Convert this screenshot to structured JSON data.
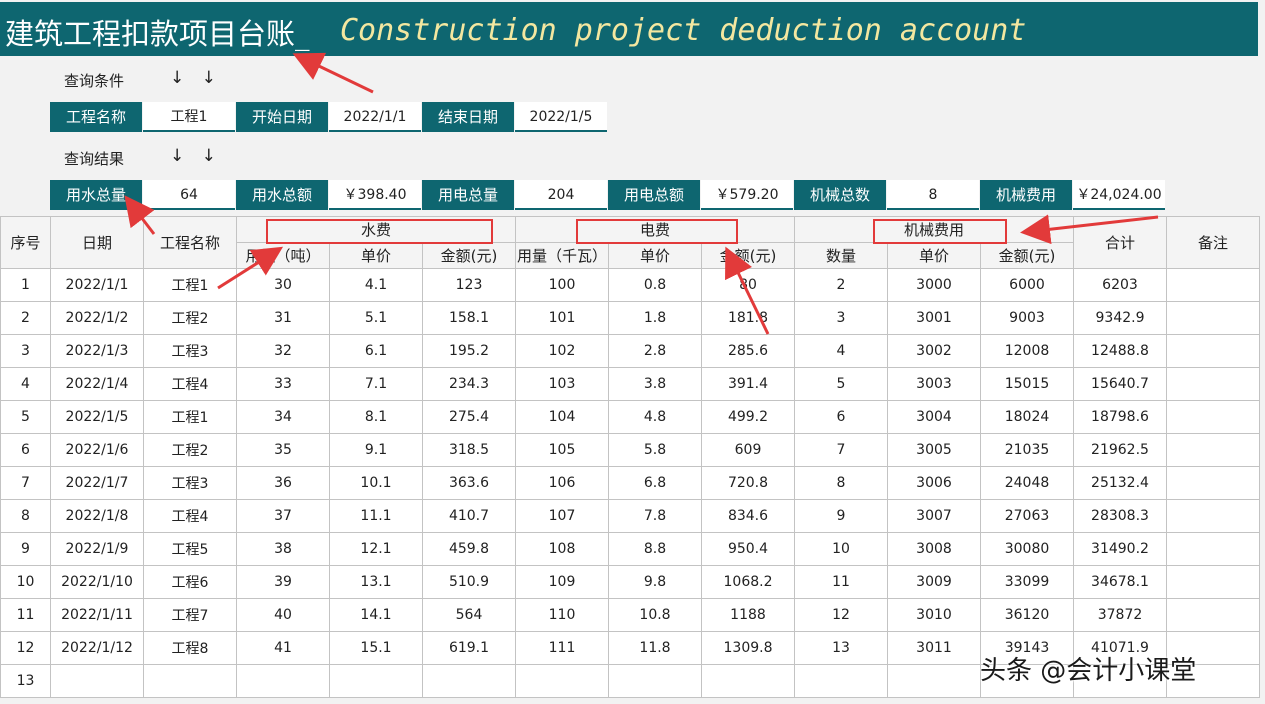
{
  "title": {
    "cn": "建筑工程扣款项目台账_",
    "en": "Construction project deduction account"
  },
  "query": {
    "section_label": "查询条件",
    "arrows": "↓ ↓",
    "fields": [
      {
        "label": "工程名称",
        "value": "工程1"
      },
      {
        "label": "开始日期",
        "value": "2022/1/1"
      },
      {
        "label": "结束日期",
        "value": "2022/1/5"
      }
    ]
  },
  "results": {
    "section_label": "查询结果",
    "arrows": "↓ ↓",
    "fields": [
      {
        "label": "用水总量",
        "value": "64"
      },
      {
        "label": "用水总额",
        "value": "￥398.40"
      },
      {
        "label": "用电总量",
        "value": "204"
      },
      {
        "label": "用电总额",
        "value": "￥579.20"
      },
      {
        "label": "机械总数",
        "value": "8"
      },
      {
        "label": "机械费用",
        "value": "￥24,024.00"
      }
    ]
  },
  "table": {
    "group_headers": {
      "seq": "序号",
      "date": "日期",
      "project": "工程名称",
      "water": "水费",
      "electric": "电费",
      "machine": "机械费用",
      "total": "合计",
      "remark": "备注"
    },
    "sub_headers": [
      "用量（吨）",
      "单价",
      "金额(元)",
      "用量（千瓦）",
      "单价",
      "金额(元)",
      "数量",
      "单价",
      "金额(元)"
    ],
    "rows": [
      [
        "1",
        "2022/1/1",
        "工程1",
        "30",
        "4.1",
        "123",
        "100",
        "0.8",
        "80",
        "2",
        "3000",
        "6000",
        "6203",
        ""
      ],
      [
        "2",
        "2022/1/2",
        "工程2",
        "31",
        "5.1",
        "158.1",
        "101",
        "1.8",
        "181.8",
        "3",
        "3001",
        "9003",
        "9342.9",
        ""
      ],
      [
        "3",
        "2022/1/3",
        "工程3",
        "32",
        "6.1",
        "195.2",
        "102",
        "2.8",
        "285.6",
        "4",
        "3002",
        "12008",
        "12488.8",
        ""
      ],
      [
        "4",
        "2022/1/4",
        "工程4",
        "33",
        "7.1",
        "234.3",
        "103",
        "3.8",
        "391.4",
        "5",
        "3003",
        "15015",
        "15640.7",
        ""
      ],
      [
        "5",
        "2022/1/5",
        "工程1",
        "34",
        "8.1",
        "275.4",
        "104",
        "4.8",
        "499.2",
        "6",
        "3004",
        "18024",
        "18798.6",
        ""
      ],
      [
        "6",
        "2022/1/6",
        "工程2",
        "35",
        "9.1",
        "318.5",
        "105",
        "5.8",
        "609",
        "7",
        "3005",
        "21035",
        "21962.5",
        ""
      ],
      [
        "7",
        "2022/1/7",
        "工程3",
        "36",
        "10.1",
        "363.6",
        "106",
        "6.8",
        "720.8",
        "8",
        "3006",
        "24048",
        "25132.4",
        ""
      ],
      [
        "8",
        "2022/1/8",
        "工程4",
        "37",
        "11.1",
        "410.7",
        "107",
        "7.8",
        "834.6",
        "9",
        "3007",
        "27063",
        "28308.3",
        ""
      ],
      [
        "9",
        "2022/1/9",
        "工程5",
        "38",
        "12.1",
        "459.8",
        "108",
        "8.8",
        "950.4",
        "10",
        "3008",
        "30080",
        "31490.2",
        ""
      ],
      [
        "10",
        "2022/1/10",
        "工程6",
        "39",
        "13.1",
        "510.9",
        "109",
        "9.8",
        "1068.2",
        "11",
        "3009",
        "33099",
        "34678.1",
        ""
      ],
      [
        "11",
        "2022/1/11",
        "工程7",
        "40",
        "14.1",
        "564",
        "110",
        "10.8",
        "1188",
        "12",
        "3010",
        "36120",
        "37872",
        ""
      ],
      [
        "12",
        "2022/1/12",
        "工程8",
        "41",
        "15.1",
        "619.1",
        "111",
        "11.8",
        "1309.8",
        "13",
        "3011",
        "39143",
        "41071.9",
        ""
      ],
      [
        "13",
        "",
        "",
        "",
        "",
        "",
        "",
        "",
        "",
        "",
        "",
        "",
        "",
        ""
      ]
    ]
  },
  "watermark": "头条 @会计小课堂",
  "colors": {
    "teal": "#0e6670",
    "title_en": "#f3e7a0",
    "annotation": "#e23a3a"
  }
}
